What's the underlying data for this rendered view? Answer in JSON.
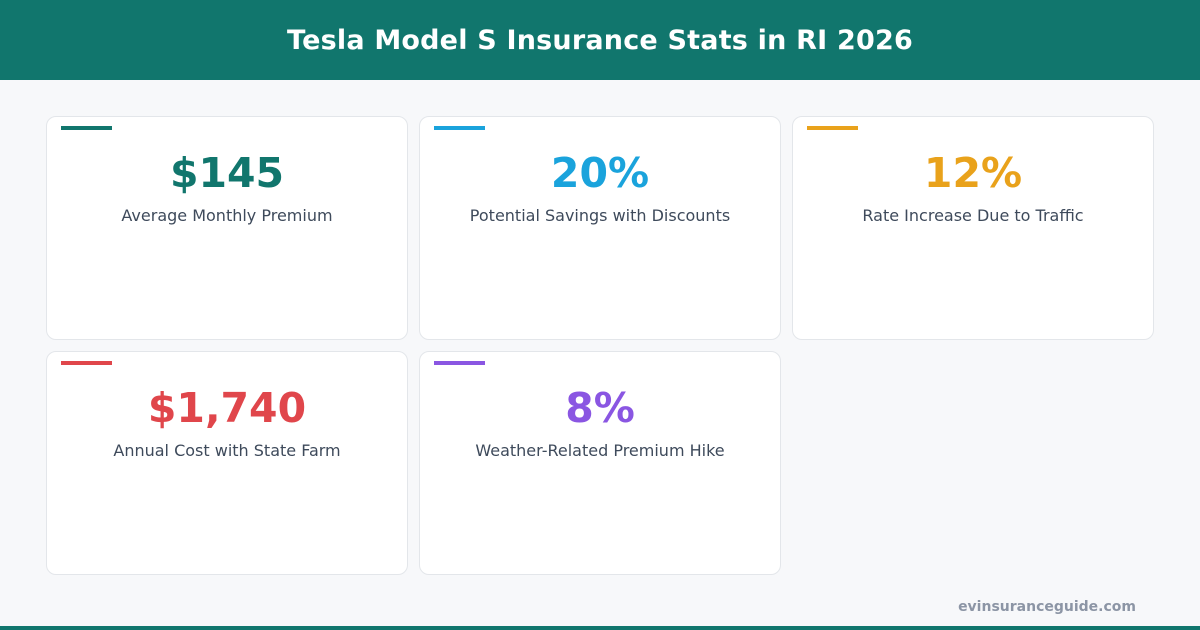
{
  "header": {
    "title": "Tesla Model S Insurance Stats in RI 2026"
  },
  "cards": [
    {
      "value": "$145",
      "label": "Average Monthly Premium",
      "color": "#11766d"
    },
    {
      "value": "20%",
      "label": "Potential Savings with Discounts",
      "color": "#1aa3dc"
    },
    {
      "value": "12%",
      "label": "Rate Increase Due to Traffic",
      "color": "#e9a21b"
    },
    {
      "value": "$1,740",
      "label": "Annual Cost with State Farm",
      "color": "#e0464b"
    },
    {
      "value": "8%",
      "label": "Weather-Related Premium Hike",
      "color": "#8a56e2"
    }
  ],
  "footer": {
    "source": "evinsuranceguide.com"
  }
}
